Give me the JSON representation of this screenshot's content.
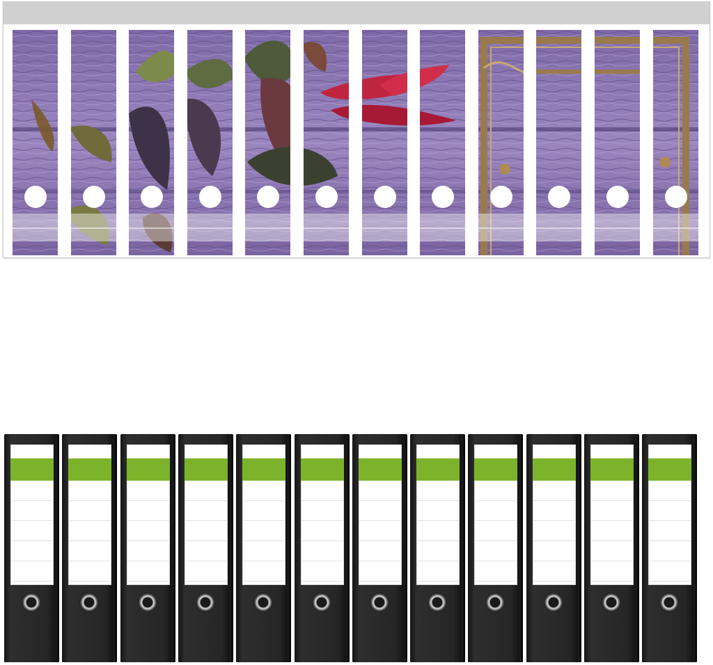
{
  "sheet": {
    "label_count": 12,
    "colors": {
      "header": "#d0d0d0",
      "photo_base": "#8c78b0"
    }
  },
  "binders": {
    "count": 12,
    "colors": {
      "body": "#262626",
      "label_stripe": "#7db32b"
    }
  }
}
